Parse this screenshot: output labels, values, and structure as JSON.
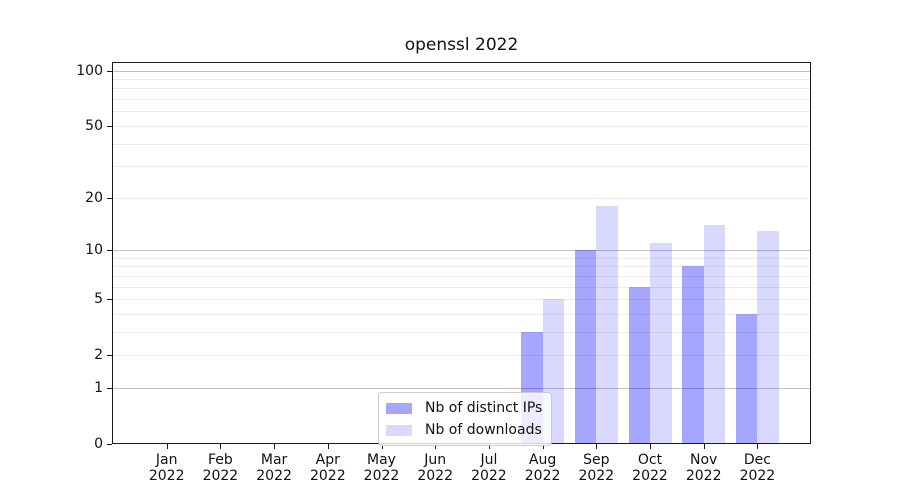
{
  "title": "openssl 2022",
  "chart_data": {
    "type": "bar",
    "title": "openssl 2022",
    "yscale": "log1p",
    "grid": true,
    "legend_position": "lower center",
    "categories": [
      "Jan",
      "Feb",
      "Mar",
      "Apr",
      "May",
      "Jun",
      "Jul",
      "Aug",
      "Sep",
      "Oct",
      "Nov",
      "Dec"
    ],
    "x_year_label": "2022",
    "series": [
      {
        "name": "Nb of distinct IPs",
        "color": "rgba(0,0,255,0.35)",
        "color_on_white": "#a6a6ff",
        "values": [
          0,
          0,
          0,
          0,
          0,
          0,
          0,
          3,
          10,
          6,
          8,
          4
        ]
      },
      {
        "name": "Nb of downloads",
        "color": "rgba(0,0,255,0.15)",
        "color_on_white": "#d9d9ff",
        "values": [
          0,
          0,
          0,
          0,
          0,
          0,
          0,
          5,
          18,
          11,
          14,
          13
        ]
      }
    ],
    "yticks": [
      0,
      1,
      2,
      5,
      10,
      20,
      50,
      100
    ],
    "major_gridlines": [
      1,
      10,
      100
    ],
    "minor_gridlines": [
      2,
      3,
      4,
      5,
      6,
      7,
      8,
      9,
      20,
      30,
      40,
      50,
      60,
      70,
      80,
      90
    ],
    "ylim": [
      0,
      111
    ],
    "xlabel": "",
    "ylabel": ""
  }
}
